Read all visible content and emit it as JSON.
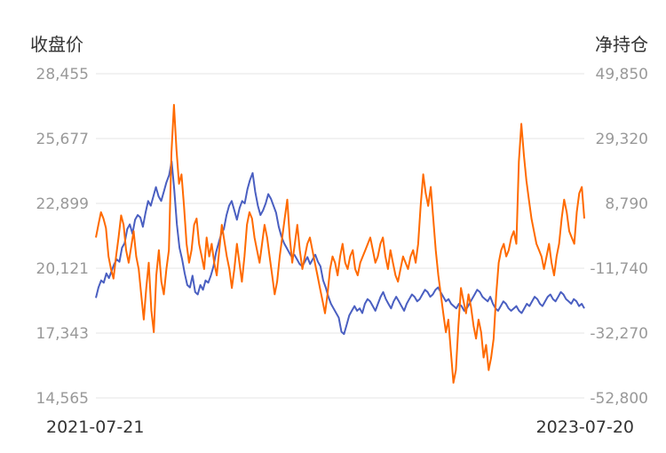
{
  "chart_data": {
    "type": "line",
    "ylabel_left": "收盘价",
    "ylabel_right": "净持仓",
    "x_start": "2021-07-21",
    "x_end": "2023-07-20",
    "y_left_ticks": [
      "28,455",
      "25,677",
      "22,899",
      "20,121",
      "17,343",
      "14,565"
    ],
    "y_right_ticks": [
      "49,850",
      "29,320",
      "8,790",
      "-11,740",
      "-32,270",
      "-52,800"
    ],
    "y_left_range": [
      14565,
      28455
    ],
    "y_right_range": [
      -52800,
      49850
    ],
    "grid": true,
    "series": [
      {
        "axis": "left",
        "color": "#4a5fc1",
        "values": [
          18850,
          19300,
          19600,
          19500,
          19900,
          19700,
          20000,
          20300,
          20500,
          20400,
          21000,
          21200,
          21800,
          22000,
          21600,
          22200,
          22400,
          22300,
          21900,
          22500,
          23000,
          22800,
          23200,
          23600,
          23200,
          23000,
          23400,
          23800,
          24100,
          24700,
          23500,
          22000,
          21000,
          20500,
          19900,
          19400,
          19300,
          19800,
          19100,
          19000,
          19400,
          19200,
          19600,
          19500,
          19800,
          20200,
          20800,
          21200,
          21600,
          21800,
          22400,
          22800,
          23000,
          22600,
          22200,
          22700,
          23000,
          22900,
          23500,
          23900,
          24200,
          23400,
          22800,
          22400,
          22600,
          22900,
          23300,
          23100,
          22800,
          22500,
          21900,
          21500,
          21200,
          21000,
          20800,
          20600,
          20700,
          20500,
          20300,
          20200,
          20400,
          20600,
          20300,
          20500,
          20700,
          20400,
          20200,
          19600,
          19300,
          18900,
          18600,
          18400,
          18200,
          18000,
          17400,
          17300,
          17700,
          18100,
          18300,
          18500,
          18300,
          18400,
          18200,
          18600,
          18800,
          18700,
          18500,
          18300,
          18600,
          18900,
          19100,
          18800,
          18600,
          18400,
          18700,
          18900,
          18700,
          18500,
          18300,
          18600,
          18800,
          19000,
          18900,
          18700,
          18800,
          19000,
          19200,
          19100,
          18900,
          19000,
          19200,
          19300,
          19100,
          18900,
          18700,
          18800,
          18600,
          18500,
          18400,
          18600,
          18500,
          18300,
          18400,
          18600,
          18800,
          19000,
          19200,
          19100,
          18900,
          18800,
          18700,
          18900,
          18600,
          18400,
          18300,
          18500,
          18700,
          18600,
          18400,
          18300,
          18400,
          18500,
          18300,
          18200,
          18400,
          18600,
          18500,
          18700,
          18900,
          18800,
          18600,
          18500,
          18700,
          18900,
          19000,
          18800,
          18700,
          18900,
          19100,
          19000,
          18800,
          18700,
          18600,
          18800,
          18700,
          18500,
          18600,
          18400
        ],
        "name": ""
      },
      {
        "axis": "right",
        "color": "#ff6a00",
        "values": [
          -2000,
          2000,
          6000,
          4000,
          1000,
          -8000,
          -12000,
          -15000,
          -8000,
          -2000,
          5000,
          2000,
          -6000,
          -10000,
          -5000,
          0,
          -8000,
          -12000,
          -20000,
          -28000,
          -18000,
          -10000,
          -25000,
          -32000,
          -14000,
          -6000,
          -16000,
          -20000,
          -12000,
          -6000,
          25000,
          40000,
          26000,
          15000,
          18000,
          8000,
          -4000,
          -10000,
          -6000,
          2000,
          4000,
          -4000,
          -8000,
          -12000,
          -2000,
          -8000,
          -4000,
          -10000,
          -14000,
          -6000,
          2000,
          -3000,
          -8000,
          -12000,
          -18000,
          -12000,
          -4000,
          -10000,
          -16000,
          -8000,
          2000,
          6000,
          4000,
          -2000,
          -6000,
          -10000,
          -4000,
          2000,
          -2000,
          -8000,
          -14000,
          -20000,
          -16000,
          -8000,
          -2000,
          4000,
          10000,
          -2000,
          -10000,
          -4000,
          2000,
          -6000,
          -12000,
          -8000,
          -4000,
          -2000,
          -6000,
          -10000,
          -14000,
          -18000,
          -22000,
          -26000,
          -20000,
          -12000,
          -8000,
          -10000,
          -14000,
          -8000,
          -4000,
          -10000,
          -12000,
          -8000,
          -6000,
          -12000,
          -14000,
          -10000,
          -8000,
          -6000,
          -4000,
          -2000,
          -6000,
          -10000,
          -8000,
          -4000,
          -2000,
          -8000,
          -12000,
          -6000,
          -10000,
          -14000,
          -16000,
          -12000,
          -8000,
          -10000,
          -12000,
          -8000,
          -6000,
          -10000,
          -4000,
          8000,
          18000,
          12000,
          8000,
          14000,
          4000,
          -6000,
          -14000,
          -20000,
          -26000,
          -32000,
          -28000,
          -38000,
          -48000,
          -44000,
          -30000,
          -18000,
          -22000,
          -26000,
          -20000,
          -24000,
          -30000,
          -34000,
          -28000,
          -32000,
          -40000,
          -36000,
          -44000,
          -40000,
          -34000,
          -20000,
          -10000,
          -6000,
          -4000,
          -8000,
          -6000,
          -2000,
          0,
          -4000,
          22000,
          34000,
          24000,
          16000,
          10000,
          4000,
          0,
          -4000,
          -6000,
          -8000,
          -12000,
          -8000,
          -4000,
          -10000,
          -14000,
          -8000,
          -4000,
          4000,
          10000,
          6000,
          0,
          -2000,
          -4000,
          6000,
          12000,
          14000,
          4000
        ]
      }
    ]
  }
}
